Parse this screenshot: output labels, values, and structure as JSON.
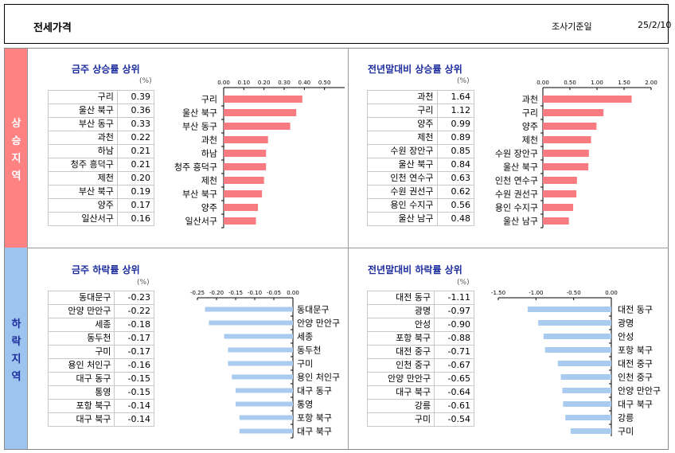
{
  "header": {
    "title": "전세가격",
    "date_label": "조사기준일",
    "date": "25/2/10"
  },
  "side_labels": {
    "up": "상승지역",
    "down": "하락지역"
  },
  "panels": {
    "weekly_up": {
      "title": "금주 상승률 상위",
      "unit": "(%)"
    },
    "ytd_up": {
      "title": "전년말대비 상승률 상위",
      "unit": "(%)"
    },
    "weekly_down": {
      "title": "금주 하락률 상위",
      "unit": "(%)"
    },
    "ytd_down": {
      "title": "전년말대비 하락률 상위",
      "unit": "(%)"
    }
  },
  "colors": {
    "up_bar": "#f77b80",
    "down_bar": "#a9cbef",
    "title": "#1c2c9c",
    "up_side": "#ff8282",
    "down_side": "#9cc4ee"
  },
  "chart_data": [
    {
      "id": "weekly_up",
      "type": "bar",
      "orientation": "horizontal",
      "title": "금주 상승률 상위",
      "categories": [
        "구리",
        "울산 북구",
        "부산 동구",
        "과천",
        "하남",
        "청주 흥덕구",
        "제천",
        "부산 북구",
        "양주",
        "일산서구"
      ],
      "values": [
        0.39,
        0.36,
        0.33,
        0.22,
        0.21,
        0.21,
        0.2,
        0.19,
        0.17,
        0.16
      ],
      "xlim": [
        0,
        0.6
      ],
      "ticks": [
        "0.00",
        "0.10",
        "0.20",
        "0.30",
        "0.40",
        "0.50"
      ],
      "tick_values": [
        0,
        0.1,
        0.2,
        0.3,
        0.4,
        0.5
      ],
      "axis_position": "top",
      "label_side": "left",
      "grid": false
    },
    {
      "id": "ytd_up",
      "type": "bar",
      "orientation": "horizontal",
      "title": "전년말대비 상승률 상위",
      "categories": [
        "과천",
        "구리",
        "양주",
        "제천",
        "수원 장안구",
        "울산 북구",
        "인천 연수구",
        "수원 권선구",
        "용인 수지구",
        "울산 남구"
      ],
      "values": [
        1.64,
        1.12,
        0.99,
        0.89,
        0.85,
        0.84,
        0.63,
        0.62,
        0.56,
        0.48
      ],
      "xlim": [
        0,
        2.0
      ],
      "ticks": [
        "0.00",
        "0.50",
        "1.00",
        "1.50",
        "2.00"
      ],
      "tick_values": [
        0,
        0.5,
        1.0,
        1.5,
        2.0
      ],
      "axis_position": "top",
      "label_side": "left",
      "grid": false
    },
    {
      "id": "weekly_down",
      "type": "bar",
      "orientation": "horizontal",
      "title": "금주 하락률 상위",
      "categories": [
        "동대문구",
        "안양 만안구",
        "세종",
        "동두천",
        "구미",
        "용인 처인구",
        "대구 동구",
        "통영",
        "포항 북구",
        "대구 북구"
      ],
      "values": [
        -0.23,
        -0.22,
        -0.18,
        -0.17,
        -0.17,
        -0.16,
        -0.15,
        -0.15,
        -0.14,
        -0.14
      ],
      "xlim": [
        -0.25,
        0
      ],
      "ticks": [
        "-0.25",
        "-0.20",
        "-0.15",
        "-0.10",
        "-0.05",
        "0.00"
      ],
      "tick_values": [
        -0.25,
        -0.2,
        -0.15,
        -0.1,
        -0.05,
        0
      ],
      "axis_position": "top",
      "label_side": "right",
      "grid": false
    },
    {
      "id": "ytd_down",
      "type": "bar",
      "orientation": "horizontal",
      "title": "전년말대비 하락률 상위",
      "categories": [
        "대전 동구",
        "광명",
        "안성",
        "포항 북구",
        "대전 중구",
        "인천 중구",
        "안양 만안구",
        "대구 북구",
        "강릉",
        "구미"
      ],
      "values": [
        -1.11,
        -0.97,
        -0.9,
        -0.88,
        -0.71,
        -0.67,
        -0.65,
        -0.64,
        -0.61,
        -0.54
      ],
      "xlim": [
        -1.5,
        0
      ],
      "ticks": [
        "-1.50",
        "-1.00",
        "-0.50",
        "0.00"
      ],
      "tick_values": [
        -1.5,
        -1.0,
        -0.5,
        0
      ],
      "axis_position": "top",
      "label_side": "right",
      "grid": false
    }
  ]
}
